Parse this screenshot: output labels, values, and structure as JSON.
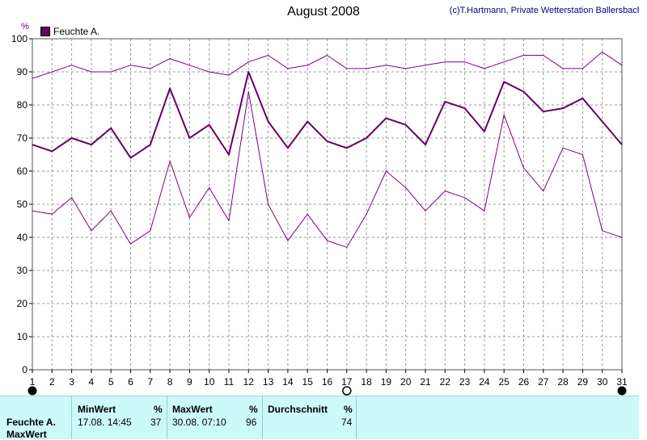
{
  "header": {
    "title": "August 2008",
    "copyright": "(c)T.Hartmann, Private Wetterstation Ballersbach"
  },
  "chart_data": {
    "type": "line",
    "ylabel": "%",
    "ylim": [
      0,
      100
    ],
    "yticks": [
      0,
      10,
      20,
      30,
      40,
      50,
      60,
      70,
      80,
      90,
      100
    ],
    "x": [
      1,
      2,
      3,
      4,
      5,
      6,
      7,
      8,
      9,
      10,
      11,
      12,
      13,
      14,
      15,
      16,
      17,
      18,
      19,
      20,
      21,
      22,
      23,
      24,
      25,
      26,
      27,
      28,
      29,
      30,
      31
    ],
    "legend": [
      "Feuchte A."
    ],
    "series": [
      {
        "name": "Feuchte A.",
        "role": "max",
        "color": "#800080",
        "values": [
          88,
          90,
          92,
          90,
          90,
          92,
          91,
          94,
          92,
          90,
          89,
          93,
          95,
          91,
          92,
          95,
          91,
          91,
          92,
          91,
          92,
          93,
          93,
          91,
          93,
          95,
          95,
          91,
          91,
          96,
          92
        ]
      },
      {
        "name": "Feuchte A.",
        "role": "avg",
        "color": "#660066",
        "values": [
          68,
          66,
          70,
          68,
          73,
          64,
          68,
          85,
          70,
          74,
          65,
          90,
          75,
          67,
          75,
          69,
          67,
          70,
          76,
          74,
          68,
          81,
          79,
          72,
          87,
          84,
          78,
          79,
          82,
          75,
          68
        ]
      },
      {
        "name": "Feuchte A.",
        "role": "min",
        "color": "#800080",
        "values": [
          48,
          47,
          52,
          42,
          48,
          38,
          42,
          63,
          46,
          55,
          45,
          84,
          50,
          39,
          47,
          39,
          37,
          47,
          60,
          55,
          48,
          54,
          52,
          48,
          77,
          61,
          54,
          67,
          65,
          42,
          40
        ]
      }
    ],
    "moon_markers": [
      {
        "day": 1,
        "phase": "new"
      },
      {
        "day": 17,
        "phase": "full"
      },
      {
        "day": 31,
        "phase": "new"
      }
    ]
  },
  "stats": {
    "min_header": "MinWert",
    "max_header": "MaxWert",
    "avg_header": "Durchschnitt",
    "unit": "%",
    "row_label": "Feuchte A.",
    "min_time": "17.08.  14:45",
    "min_value": "37",
    "max_time": "30.08.  07:10",
    "max_value": "96",
    "avg_value": "74",
    "second_row_label": "MaxWert"
  },
  "legend": {
    "label": "Feuchte A."
  }
}
